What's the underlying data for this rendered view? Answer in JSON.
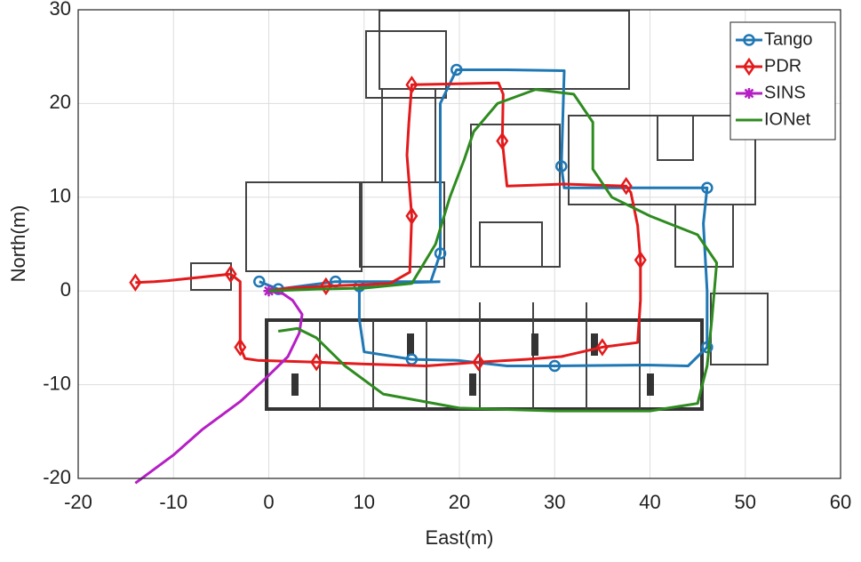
{
  "chart_data": {
    "type": "line",
    "x_label": "East(m)",
    "y_label": "North(m)",
    "xlim": [
      -20,
      60
    ],
    "ylim": [
      -20,
      30
    ],
    "xticks": [
      -20,
      -10,
      0,
      10,
      20,
      30,
      40,
      50,
      60
    ],
    "yticks": [
      -20,
      -10,
      0,
      10,
      20,
      30
    ],
    "grid": true,
    "legend": "upper right",
    "series": [
      {
        "name": "Tango",
        "color": "#1f77b4",
        "marker": "circle",
        "markevery": 3,
        "x": [
          -1,
          0,
          0.5,
          1,
          4,
          5.5,
          7,
          12,
          17,
          18,
          18,
          18,
          19.7,
          25,
          31,
          30.7,
          31,
          38,
          46,
          45.6,
          46,
          46,
          44,
          39.7,
          30,
          25,
          19.8,
          15,
          10,
          9.5,
          9.5,
          12,
          18
        ],
        "y": [
          1,
          0.6,
          0.4,
          0.2,
          0.6,
          0.8,
          1,
          1,
          1,
          4,
          12,
          20,
          23.6,
          23.6,
          23.5,
          13.3,
          11,
          11,
          11,
          7.2,
          0,
          -6,
          -8,
          -7.9,
          -8,
          -8,
          -7.4,
          -7.3,
          -6.5,
          -3,
          0.5,
          0.8,
          1
        ]
      },
      {
        "name": "PDR",
        "color": "#e31a1c",
        "marker": "diamond",
        "markevery": 3,
        "x": [
          -14,
          -12,
          -10.6,
          -4,
          -3,
          -3,
          -3,
          -2.5,
          -1.2,
          5,
          10,
          16.5,
          22,
          27,
          30.7,
          35,
          38.7,
          39,
          39,
          38.7,
          38,
          37.5,
          31,
          25,
          24.5,
          24.6,
          24.1,
          15,
          14.7,
          14.5,
          15,
          14.8,
          12.7,
          6,
          2,
          0
        ],
        "y": [
          0.9,
          1,
          1.1,
          1.8,
          1,
          -3,
          -6,
          -7.2,
          -7.4,
          -7.6,
          -7.8,
          -8,
          -7.6,
          -7.3,
          -7,
          -6,
          -5.5,
          -1,
          3.3,
          7,
          10.5,
          11.2,
          11.4,
          11.2,
          16,
          21,
          22.2,
          22,
          18,
          14.5,
          8,
          2,
          0.8,
          0.5,
          0.3,
          0
        ]
      },
      {
        "name": "SINS",
        "color": "#b51fc4",
        "marker": "asterisk",
        "markevery": 100,
        "x": [
          0,
          1.5,
          2.5,
          3.5,
          3.2,
          2,
          0,
          -3,
          -7,
          -10,
          -14
        ],
        "y": [
          0,
          -0.3,
          -1,
          -2.5,
          -4.5,
          -7,
          -9,
          -11.8,
          -14.8,
          -17.5,
          -20.5
        ]
      },
      {
        "name": "IONet",
        "color": "#2e8b1f",
        "marker": "none",
        "markevery": 0,
        "x": [
          0,
          5,
          10,
          15,
          17.5,
          19,
          20.5,
          21.5,
          24,
          28,
          32,
          34,
          34,
          36,
          40,
          45,
          47,
          46.5,
          46,
          45,
          40,
          30,
          20,
          12,
          8,
          5,
          3,
          1
        ],
        "y": [
          0,
          0.2,
          0.3,
          0.8,
          5,
          10,
          14,
          17,
          20,
          21.5,
          21,
          18,
          13,
          10,
          8,
          6,
          3,
          -3,
          -8,
          -12,
          -12.8,
          -12.8,
          -12.5,
          -11,
          -8,
          -5,
          -4,
          -4.3
        ]
      }
    ]
  }
}
